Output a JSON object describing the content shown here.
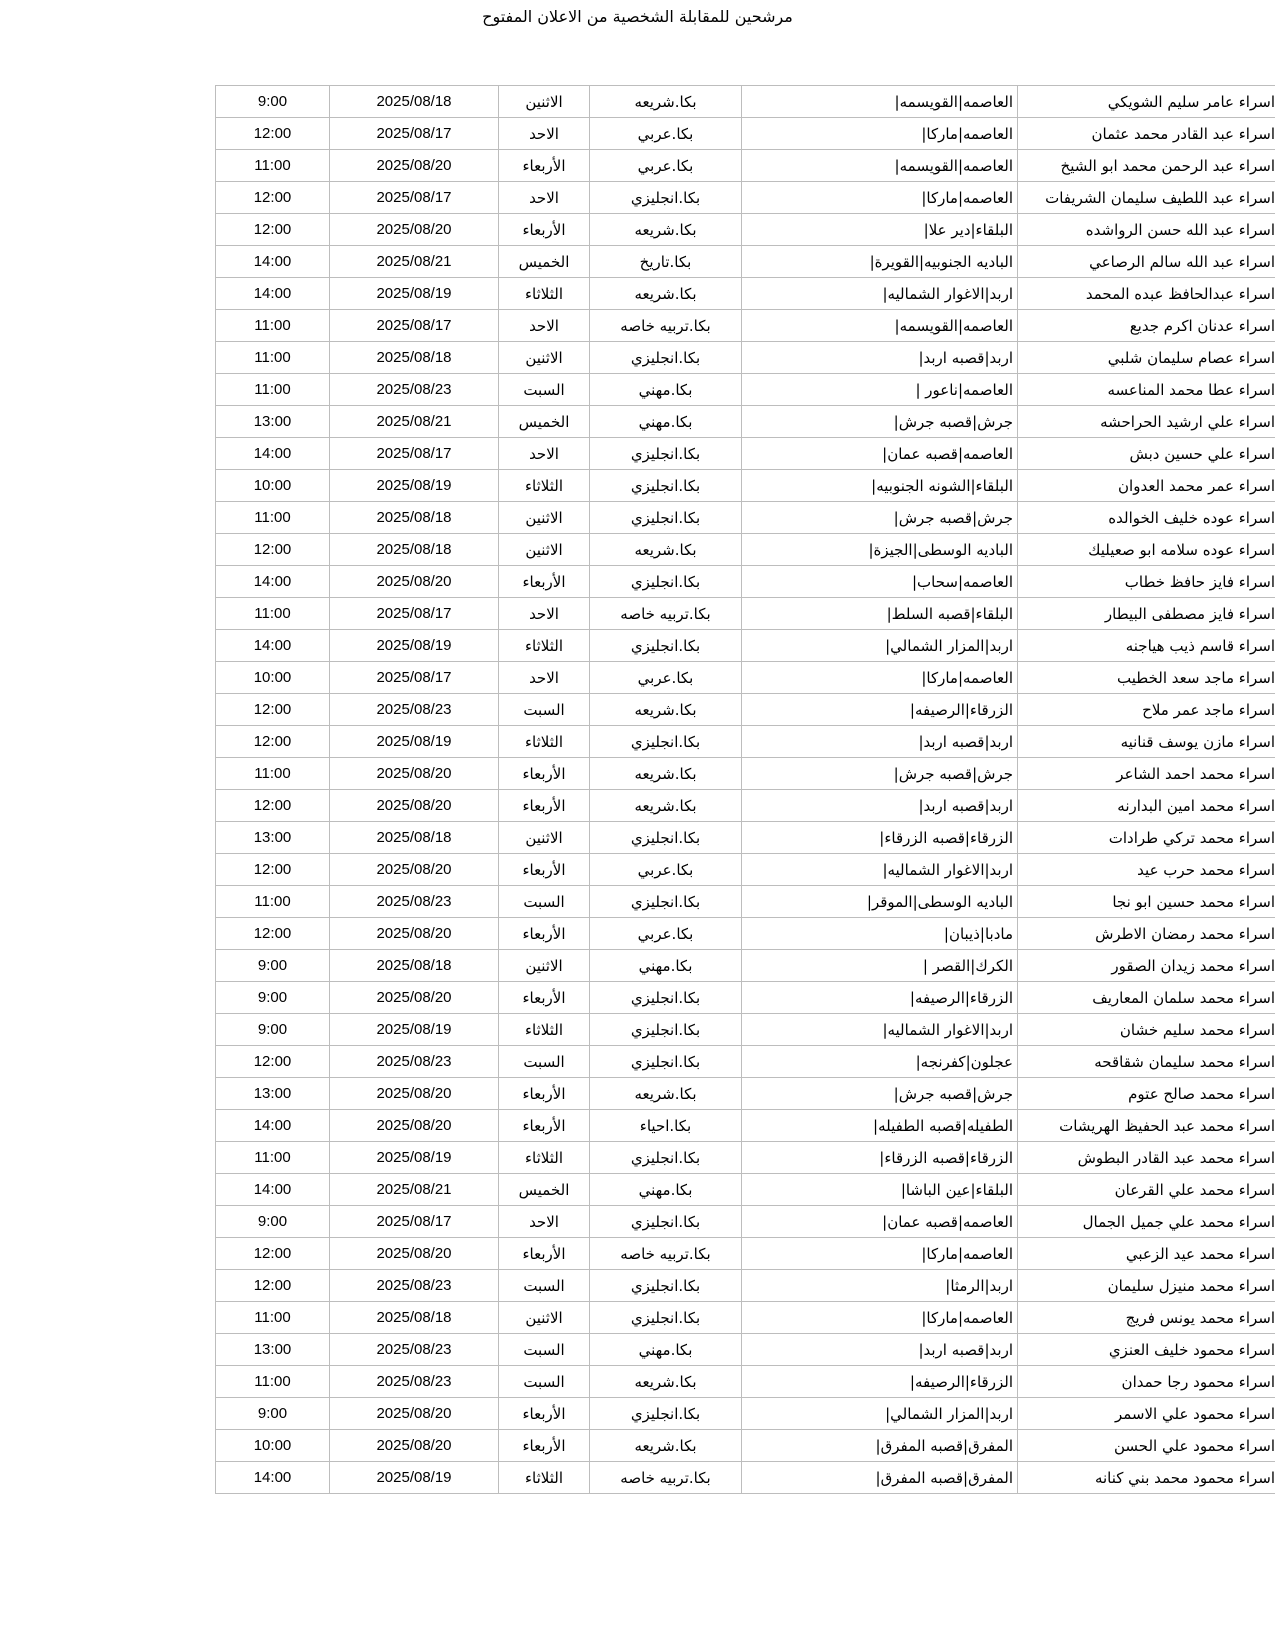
{
  "page": {
    "title": "مرشحين للمقابلة الشخصية من الاعلان المفتوح"
  },
  "table": {
    "rows": [
      {
        "name": "اسراء عامر سليم الشويكي",
        "location": "العاصمه|القويسمه|",
        "degree": "بكا.شريعه",
        "day": "الاثنين",
        "date": "2025/08/18",
        "time": "9:00"
      },
      {
        "name": "اسراء عبد القادر محمد عثمان",
        "location": "العاصمه|ماركا|",
        "degree": "بكا.عربي",
        "day": "الاحد",
        "date": "2025/08/17",
        "time": "12:00"
      },
      {
        "name": "اسراء عبد الرحمن محمد ابو الشيخ",
        "location": "العاصمه|القويسمه|",
        "degree": "بكا.عربي",
        "day": "الأربعاء",
        "date": "2025/08/20",
        "time": "11:00"
      },
      {
        "name": "اسراء عبد اللطيف سليمان الشريفات",
        "location": "العاصمه|ماركا|",
        "degree": "بكا.انجليزي",
        "day": "الاحد",
        "date": "2025/08/17",
        "time": "12:00"
      },
      {
        "name": "اسراء عبد الله حسن الرواشده",
        "location": "البلقاء|دير علا|",
        "degree": "بكا.شريعه",
        "day": "الأربعاء",
        "date": "2025/08/20",
        "time": "12:00"
      },
      {
        "name": "اسراء عبد الله سالم الرصاعي",
        "location": "الباديه الجنوبيه|القويرة|",
        "degree": "بكا.تاريخ",
        "day": "الخميس",
        "date": "2025/08/21",
        "time": "14:00"
      },
      {
        "name": "اسراء عبدالحافظ عبده المحمد",
        "location": "اربد|الاغوار الشماليه|",
        "degree": "بكا.شريعه",
        "day": "الثلاثاء",
        "date": "2025/08/19",
        "time": "14:00"
      },
      {
        "name": "اسراء عدنان اكرم جديع",
        "location": "العاصمه|القويسمه|",
        "degree": "بكا.تربيه خاصه",
        "day": "الاحد",
        "date": "2025/08/17",
        "time": "11:00"
      },
      {
        "name": "اسراء عصام سليمان شلبي",
        "location": "اربد|قصبه اربد|",
        "degree": "بكا.انجليزي",
        "day": "الاثنين",
        "date": "2025/08/18",
        "time": "11:00"
      },
      {
        "name": "اسراء عطا محمد المناعسه",
        "location": "العاصمه|ناعور |",
        "degree": "بكا.مهني",
        "day": "السبت",
        "date": "2025/08/23",
        "time": "11:00"
      },
      {
        "name": "اسراء علي ارشيد الحراحشه",
        "location": "جرش|قصبه جرش|",
        "degree": "بكا.مهني",
        "day": "الخميس",
        "date": "2025/08/21",
        "time": "13:00"
      },
      {
        "name": "اسراء علي حسين دبش",
        "location": "العاصمه|قصبه عمان|",
        "degree": "بكا.انجليزي",
        "day": "الاحد",
        "date": "2025/08/17",
        "time": "14:00"
      },
      {
        "name": "اسراء عمر محمد العدوان",
        "location": "البلقاء|الشونه الجنوبيه|",
        "degree": "بكا.انجليزي",
        "day": "الثلاثاء",
        "date": "2025/08/19",
        "time": "10:00"
      },
      {
        "name": "اسراء عوده خليف الخوالده",
        "location": "جرش|قصبه جرش|",
        "degree": "بكا.انجليزي",
        "day": "الاثنين",
        "date": "2025/08/18",
        "time": "11:00"
      },
      {
        "name": "اسراء عوده سلامه ابو صعيليك",
        "location": "الباديه الوسطى|الجيزة|",
        "degree": "بكا.شريعه",
        "day": "الاثنين",
        "date": "2025/08/18",
        "time": "12:00"
      },
      {
        "name": "اسراء فايز حافظ خطاب",
        "location": "العاصمه|سحاب|",
        "degree": "بكا.انجليزي",
        "day": "الأربعاء",
        "date": "2025/08/20",
        "time": "14:00"
      },
      {
        "name": "اسراء فايز مصطفى البيطار",
        "location": "البلقاء|قصبه السلط|",
        "degree": "بكا.تربيه خاصه",
        "day": "الاحد",
        "date": "2025/08/17",
        "time": "11:00"
      },
      {
        "name": "اسراء قاسم ذيب هياجنه",
        "location": "اربد|المزار الشمالي|",
        "degree": "بكا.انجليزي",
        "day": "الثلاثاء",
        "date": "2025/08/19",
        "time": "14:00"
      },
      {
        "name": "اسراء ماجد سعد الخطيب",
        "location": "العاصمه|ماركا|",
        "degree": "بكا.عربي",
        "day": "الاحد",
        "date": "2025/08/17",
        "time": "10:00"
      },
      {
        "name": "اسراء ماجد عمر ملاح",
        "location": "الزرقاء|الرصيفه|",
        "degree": "بكا.شريعه",
        "day": "السبت",
        "date": "2025/08/23",
        "time": "12:00"
      },
      {
        "name": "اسراء مازن يوسف قنانيه",
        "location": "اربد|قصبه اربد|",
        "degree": "بكا.انجليزي",
        "day": "الثلاثاء",
        "date": "2025/08/19",
        "time": "12:00"
      },
      {
        "name": "اسراء محمد احمد الشاعر",
        "location": "جرش|قصبه جرش|",
        "degree": "بكا.شريعه",
        "day": "الأربعاء",
        "date": "2025/08/20",
        "time": "11:00"
      },
      {
        "name": "اسراء محمد امين البدارنه",
        "location": "اربد|قصبه اربد|",
        "degree": "بكا.شريعه",
        "day": "الأربعاء",
        "date": "2025/08/20",
        "time": "12:00"
      },
      {
        "name": "اسراء محمد تركي طرادات",
        "location": "الزرقاء|قصبه الزرقاء|",
        "degree": "بكا.انجليزي",
        "day": "الاثنين",
        "date": "2025/08/18",
        "time": "13:00"
      },
      {
        "name": "اسراء محمد حرب عيد",
        "location": "اربد|الاغوار الشماليه|",
        "degree": "بكا.عربي",
        "day": "الأربعاء",
        "date": "2025/08/20",
        "time": "12:00"
      },
      {
        "name": "اسراء محمد حسين ابو نجا",
        "location": "الباديه الوسطى|الموقر|",
        "degree": "بكا.انجليزي",
        "day": "السبت",
        "date": "2025/08/23",
        "time": "11:00"
      },
      {
        "name": "اسراء محمد رمضان الاطرش",
        "location": "مادبا|ذيبان|",
        "degree": "بكا.عربي",
        "day": "الأربعاء",
        "date": "2025/08/20",
        "time": "12:00"
      },
      {
        "name": "اسراء محمد زيدان الصقور",
        "location": "الكرك|القصر |",
        "degree": "بكا.مهني",
        "day": "الاثنين",
        "date": "2025/08/18",
        "time": "9:00"
      },
      {
        "name": "اسراء محمد سلمان المعاريف",
        "location": "الزرقاء|الرصيفه|",
        "degree": "بكا.انجليزي",
        "day": "الأربعاء",
        "date": "2025/08/20",
        "time": "9:00"
      },
      {
        "name": "اسراء محمد سليم خشان",
        "location": "اربد|الاغوار الشماليه|",
        "degree": "بكا.انجليزي",
        "day": "الثلاثاء",
        "date": "2025/08/19",
        "time": "9:00"
      },
      {
        "name": "اسراء محمد سليمان شقاقحه",
        "location": "عجلون|كفرنجه|",
        "degree": "بكا.انجليزي",
        "day": "السبت",
        "date": "2025/08/23",
        "time": "12:00"
      },
      {
        "name": "اسراء محمد صالح عتوم",
        "location": "جرش|قصبه جرش|",
        "degree": "بكا.شريعه",
        "day": "الأربعاء",
        "date": "2025/08/20",
        "time": "13:00"
      },
      {
        "name": "اسراء محمد عبد الحفيظ الهريشات",
        "location": "الطفيله|قصبه الطفيله|",
        "degree": "بكا.احياء",
        "day": "الأربعاء",
        "date": "2025/08/20",
        "time": "14:00"
      },
      {
        "name": "اسراء محمد عبد القادر البطوش",
        "location": "الزرقاء|قصبه الزرقاء|",
        "degree": "بكا.انجليزي",
        "day": "الثلاثاء",
        "date": "2025/08/19",
        "time": "11:00"
      },
      {
        "name": "اسراء محمد علي القرعان",
        "location": "البلقاء|عين الباشا|",
        "degree": "بكا.مهني",
        "day": "الخميس",
        "date": "2025/08/21",
        "time": "14:00"
      },
      {
        "name": "اسراء محمد علي جميل الجمال",
        "location": "العاصمه|قصبه عمان|",
        "degree": "بكا.انجليزي",
        "day": "الاحد",
        "date": "2025/08/17",
        "time": "9:00"
      },
      {
        "name": "اسراء محمد عيد الزعبي",
        "location": "العاصمه|ماركا|",
        "degree": "بكا.تربيه خاصه",
        "day": "الأربعاء",
        "date": "2025/08/20",
        "time": "12:00"
      },
      {
        "name": "اسراء محمد منيزل سليمان",
        "location": "اربد|الرمثا|",
        "degree": "بكا.انجليزي",
        "day": "السبت",
        "date": "2025/08/23",
        "time": "12:00"
      },
      {
        "name": "اسراء محمد يونس فريج",
        "location": "العاصمه|ماركا|",
        "degree": "بكا.انجليزي",
        "day": "الاثنين",
        "date": "2025/08/18",
        "time": "11:00"
      },
      {
        "name": "اسراء محمود خليف العنزي",
        "location": "اربد|قصبه اربد|",
        "degree": "بكا.مهني",
        "day": "السبت",
        "date": "2025/08/23",
        "time": "13:00"
      },
      {
        "name": "اسراء محمود رجا حمدان",
        "location": "الزرقاء|الرصيفه|",
        "degree": "بكا.شريعه",
        "day": "السبت",
        "date": "2025/08/23",
        "time": "11:00"
      },
      {
        "name": "اسراء محمود علي الاسمر",
        "location": "اربد|المزار الشمالي|",
        "degree": "بكا.انجليزي",
        "day": "الأربعاء",
        "date": "2025/08/20",
        "time": "9:00"
      },
      {
        "name": "اسراء محمود علي الحسن",
        "location": "المفرق|قصبه المفرق|",
        "degree": "بكا.شريعه",
        "day": "الأربعاء",
        "date": "2025/08/20",
        "time": "10:00"
      },
      {
        "name": "اسراء محمود محمد بني كنانه",
        "location": "المفرق|قصبه المفرق|",
        "degree": "بكا.تربيه خاصه",
        "day": "الثلاثاء",
        "date": "2025/08/19",
        "time": "14:00"
      }
    ]
  }
}
